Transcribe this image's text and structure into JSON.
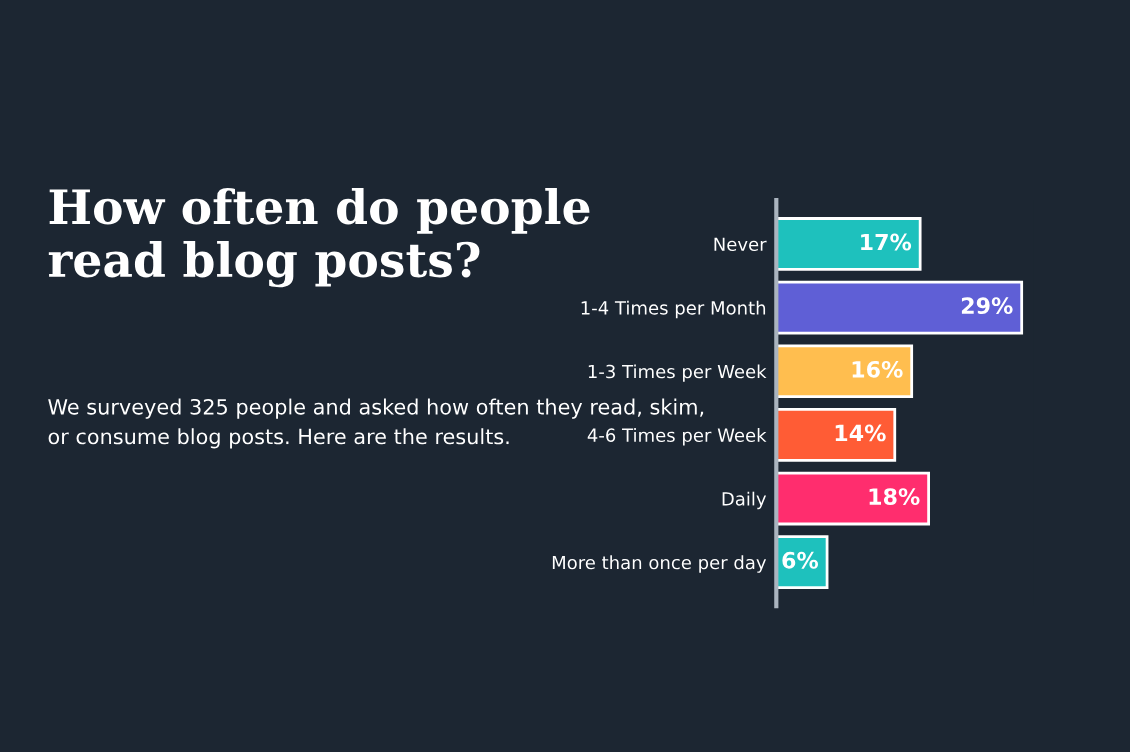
{
  "chart_data": {
    "type": "bar",
    "orientation": "horizontal",
    "title": "How often do people read blog posts?",
    "subtitle": "We surveyed 325 people and asked how often they read, skim, or consume blog posts. Here are the results.",
    "categories": [
      "Never",
      "1-4 Times per Month",
      "1-3 Times per Week",
      "4-6 Times per Week",
      "Daily",
      "More than once per day"
    ],
    "values": [
      17,
      29,
      16,
      14,
      18,
      6
    ],
    "value_labels": [
      "17%",
      "29%",
      "16%",
      "14%",
      "18%",
      "6%"
    ],
    "colors": [
      "#1ec1bd",
      "#5f5fd6",
      "#ffbe4f",
      "#ff5c35",
      "#ff2d6e",
      "#1ec1bd"
    ],
    "tick_labels": "y",
    "grid": false,
    "legend": false
  }
}
